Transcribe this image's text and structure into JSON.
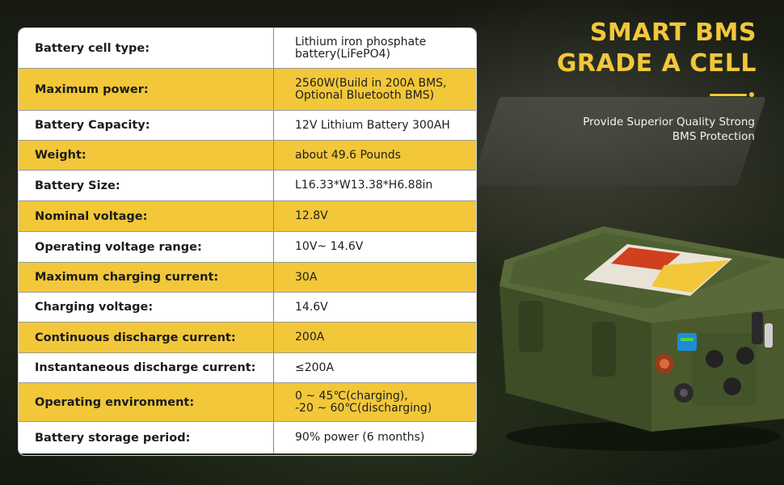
{
  "headline": {
    "line1": "SMART BMS",
    "line2": "GRADE A CELL"
  },
  "subtext": {
    "line1": "Provide Superior Quality Strong",
    "line2": "BMS Protection"
  },
  "specs": [
    {
      "label": "Battery cell type:",
      "value": "Lithium iron phosphate\nbattery(LiFePO4)"
    },
    {
      "label": "Maximum power:",
      "value": "2560W(Build in 200A BMS,\nOptional Bluetooth BMS)"
    },
    {
      "label": "Battery Capacity:",
      "value": "12V Lithium Battery 300AH"
    },
    {
      "label": "Weight:",
      "value": "about 49.6 Pounds"
    },
    {
      "label": "Battery Size:",
      "value": "L16.33*W13.38*H6.88in"
    },
    {
      "label": "Nominal voltage:",
      "value": "12.8V"
    },
    {
      "label": "Operating voltage range:",
      "value": "10V~ 14.6V"
    },
    {
      "label": "Maximum charging current:",
      "value": "30A"
    },
    {
      "label": "Charging voltage:",
      "value": "14.6V"
    },
    {
      "label": "Continuous discharge current:",
      "value": "200A"
    },
    {
      "label": "Instantaneous discharge current:",
      "value": "≤200A"
    },
    {
      "label": "Operating environment:",
      "value": "0 ~ 45℃(charging),\n-20 ~ 60℃(discharging)"
    },
    {
      "label": "Battery storage period:",
      "value": "90% power (6 months)"
    }
  ],
  "colors": {
    "accent_yellow": "#f2c739",
    "row_white": "#ffffff",
    "battery_green": "#4a5a2c"
  }
}
